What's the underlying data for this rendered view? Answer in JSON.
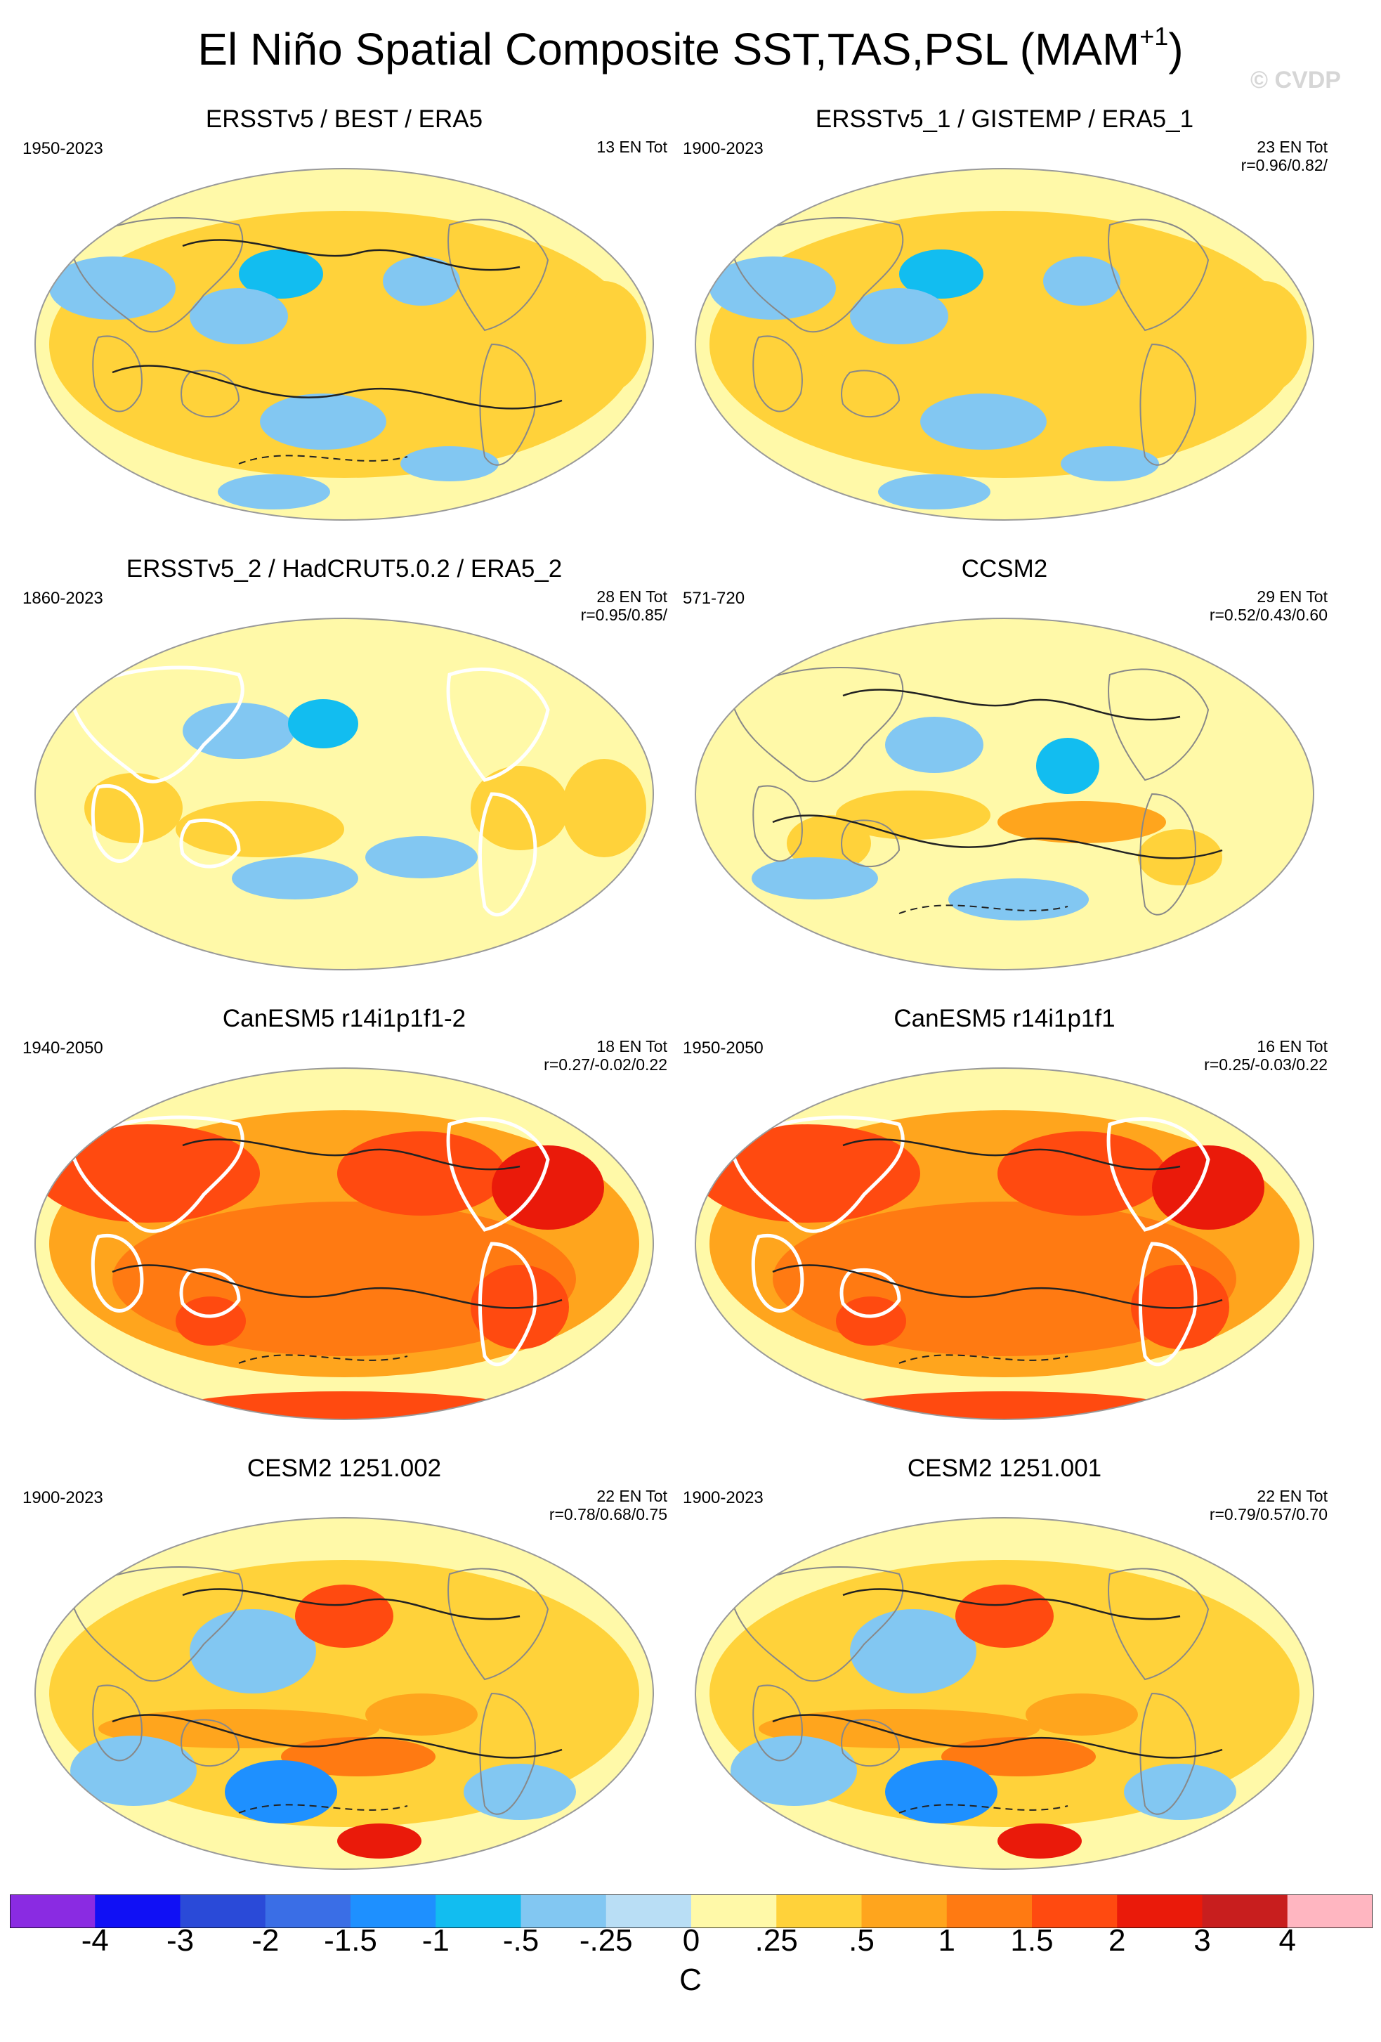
{
  "title": {
    "main": "El Niño Spatial Composite SST,TAS,PSL (MAM",
    "superscript": "+1",
    "close": ")"
  },
  "copyright": "© CVDP",
  "colors": {
    "scale": [
      "#8a2be2",
      "#1010f5",
      "#2a4ad8",
      "#3a6ee6",
      "#1e90ff",
      "#12bdf0",
      "#82c7f2",
      "#b9def5",
      "#fff9a8",
      "#ffd23a",
      "#ffa51d",
      "#ff7a12",
      "#ff4a10",
      "#ea1a0a",
      "#c81e1e",
      "#ffb6c1"
    ],
    "contour": "#222222",
    "coast": "#888888",
    "land_mask": "#ffffff"
  },
  "panels": [
    {
      "title": "ERSSTv5 / BEST / ERA5",
      "years": "1950-2023",
      "stats": [
        "13 EN Tot"
      ],
      "pattern": "obs",
      "contours": true,
      "mask": false
    },
    {
      "title": "ERSSTv5_1 / GISTEMP / ERA5_1",
      "years": "1900-2023",
      "stats": [
        "23 EN Tot",
        "r=0.96/0.82/"
      ],
      "pattern": "obs",
      "contours": false,
      "mask": false
    },
    {
      "title": "ERSSTv5_2 / HadCRUT5.0.2 / ERA5_2",
      "years": "1860-2023",
      "stats": [
        "28 EN Tot",
        "r=0.95/0.85/"
      ],
      "pattern": "obs2",
      "contours": false,
      "mask": true
    },
    {
      "title": "CCSM2",
      "years": "571-720",
      "stats": [
        "29 EN Tot",
        "r=0.52/0.43/0.60"
      ],
      "pattern": "ccsm",
      "contours": true,
      "mask": false
    },
    {
      "title": "CanESM5 r14i1p1f1-2",
      "years": "1940-2050",
      "stats": [
        "18 EN Tot",
        "r=0.27/-0.02/0.22"
      ],
      "pattern": "can",
      "contours": true,
      "mask": true
    },
    {
      "title": "CanESM5 r14i1p1f1",
      "years": "1950-2050",
      "stats": [
        "16 EN Tot",
        "r=0.25/-0.03/0.22"
      ],
      "pattern": "can",
      "contours": true,
      "mask": true
    },
    {
      "title": "CESM2 1251.002",
      "years": "1900-2023",
      "stats": [
        "22 EN Tot",
        "r=0.78/0.68/0.75"
      ],
      "pattern": "cesm",
      "contours": true,
      "mask": false
    },
    {
      "title": "CESM2 1251.001",
      "years": "1900-2023",
      "stats": [
        "22 EN Tot",
        "r=0.79/0.57/0.70"
      ],
      "pattern": "cesm",
      "contours": true,
      "mask": false
    }
  ],
  "colorbar": {
    "labels": [
      "-4",
      "-3",
      "-2",
      "-1.5",
      "-1",
      "-.5",
      "-.25",
      "0",
      ".25",
      ".5",
      "1",
      "1.5",
      "2",
      "3",
      "4"
    ],
    "units": "C"
  }
}
